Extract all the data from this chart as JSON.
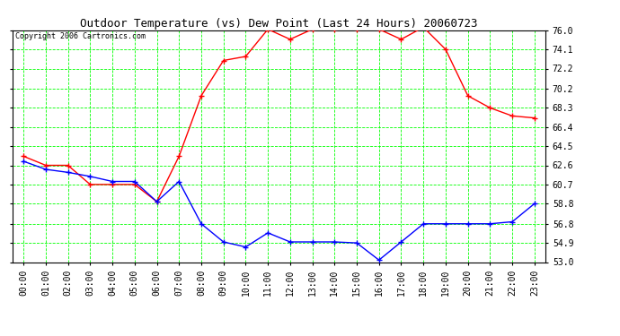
{
  "title": "Outdoor Temperature (vs) Dew Point (Last 24 Hours) 20060723",
  "copyright": "Copyright 2006 Cartronics.com",
  "x_labels": [
    "00:00",
    "01:00",
    "02:00",
    "03:00",
    "04:00",
    "05:00",
    "06:00",
    "07:00",
    "08:00",
    "09:00",
    "10:00",
    "11:00",
    "12:00",
    "13:00",
    "14:00",
    "15:00",
    "16:00",
    "17:00",
    "18:00",
    "19:00",
    "20:00",
    "21:00",
    "22:00",
    "23:00"
  ],
  "y_ticks": [
    53.0,
    54.9,
    56.8,
    58.8,
    60.7,
    62.6,
    64.5,
    66.4,
    68.3,
    70.2,
    72.2,
    74.1,
    76.0
  ],
  "y_min": 53.0,
  "y_max": 76.0,
  "temp_color": "#FF0000",
  "dew_color": "#0000FF",
  "bg_color": "#FFFFFF",
  "plot_bg_color": "#FFFFFF",
  "grid_color": "#00FF00",
  "temp_data": [
    63.5,
    62.6,
    62.6,
    60.7,
    60.7,
    60.7,
    59.0,
    63.5,
    69.5,
    73.0,
    73.4,
    76.1,
    75.1,
    76.1,
    76.1,
    76.1,
    76.1,
    75.1,
    76.3,
    74.1,
    69.5,
    68.3,
    67.5,
    67.3
  ],
  "dew_data": [
    63.0,
    62.2,
    61.9,
    61.5,
    61.0,
    61.0,
    59.0,
    61.0,
    56.8,
    55.0,
    54.5,
    55.9,
    55.0,
    55.0,
    55.0,
    54.9,
    53.2,
    55.0,
    56.8,
    56.8,
    56.8,
    56.8,
    57.0,
    58.8
  ],
  "title_fontsize": 9,
  "tick_fontsize": 7,
  "copyright_fontsize": 6
}
